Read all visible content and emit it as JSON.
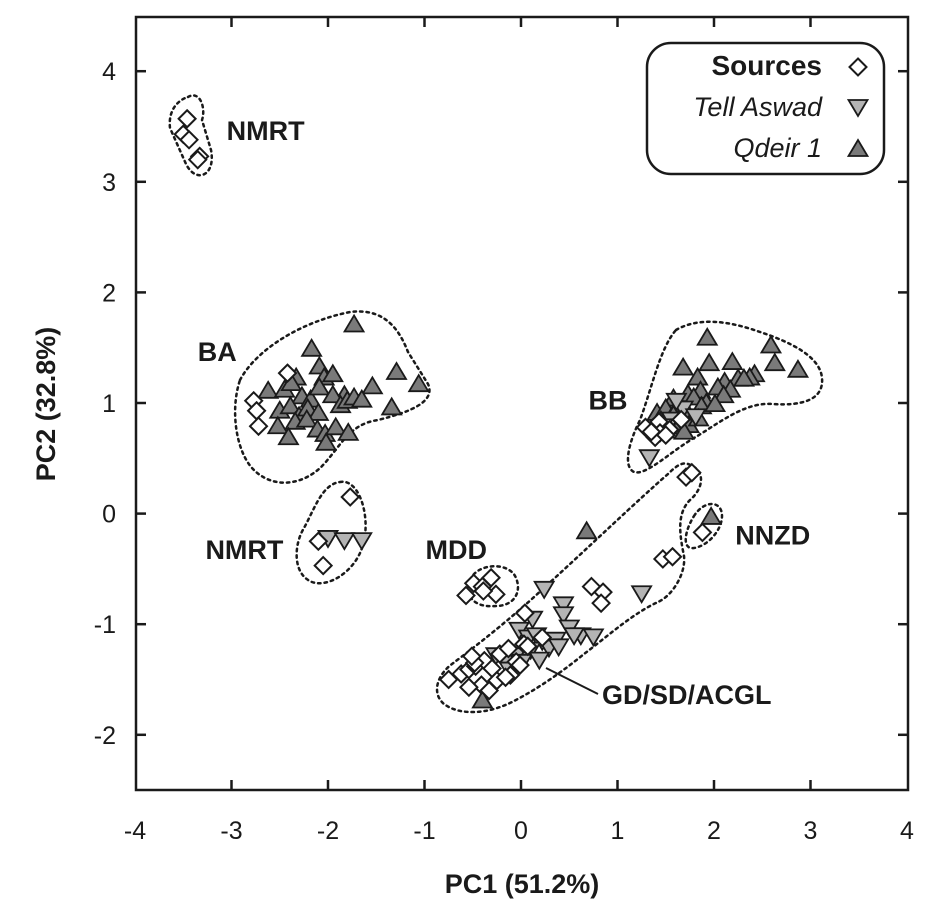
{
  "chart_data": {
    "type": "scatter",
    "xlabel": "PC1 (51.2%)",
    "ylabel": "PC2 (32.8%)",
    "xlim": [
      -4,
      4
    ],
    "ylim": [
      -2.5,
      4.4
    ],
    "x_ticks": [
      -4,
      -3,
      -2,
      -1,
      0,
      1,
      2,
      3,
      4
    ],
    "y_ticks": [
      -2,
      -1,
      0,
      1,
      2,
      3,
      4
    ],
    "x_tick_labels": [
      "-4",
      "-3",
      "-2",
      "-1",
      "0",
      "1",
      "2",
      "3",
      "4"
    ],
    "y_tick_labels": [
      "-2",
      "-1",
      "0",
      "1",
      "2",
      "3",
      "4"
    ],
    "legend": {
      "position": "top-right",
      "title": "Sources",
      "entries": [
        "Tell Aswad",
        "Qdeir 1"
      ]
    },
    "colors": {
      "sources_fill": "#ffffff",
      "tell_aswad_fill": "#b4b4b4",
      "qdeir_fill": "#7a7a7a",
      "stroke": "#1a1a1a"
    },
    "group_labels": [
      {
        "text": "NMRT",
        "x": -3.05,
        "y": 3.47
      },
      {
        "text": "BA",
        "x": -3.35,
        "y": 1.47
      },
      {
        "text": "NMRT",
        "x": -3.27,
        "y": -0.32
      },
      {
        "text": "BB",
        "x": 0.7,
        "y": 1.03
      },
      {
        "text": "MDD",
        "x": -0.99,
        "y": -0.32
      },
      {
        "text": "NNZD",
        "x": 2.22,
        "y": -0.19
      },
      {
        "text": "GD/SD/ACGL",
        "x": 0.84,
        "y": -1.63
      }
    ],
    "series": [
      {
        "name": "Sources",
        "marker": "diamond",
        "x": [
          -3.46,
          -3.5,
          -3.44,
          -3.33,
          -3.35,
          -2.77,
          -2.74,
          -2.72,
          -2.42,
          -1.77,
          -2.1,
          -2.05,
          -0.49,
          -0.4,
          -0.31,
          -0.26,
          -0.39,
          -0.57,
          0.73,
          0.85,
          0.83,
          1.47,
          1.57,
          1.71,
          1.77,
          1.88,
          1.29,
          1.43,
          1.54,
          1.66,
          1.44,
          1.39,
          1.5,
          1.35,
          -0.75,
          -0.62,
          -0.54,
          -0.47,
          -0.38,
          -0.3,
          -0.22,
          -0.13,
          -0.05,
          0.03,
          -0.41,
          -0.33,
          -0.25,
          -0.11,
          -0.54,
          -0.48,
          -0.16,
          0.07,
          0.22,
          0.04,
          -0.51,
          -0.01
        ],
        "y": [
          3.57,
          3.43,
          3.38,
          3.23,
          3.2,
          1.02,
          0.93,
          0.79,
          1.27,
          0.15,
          -0.25,
          -0.47,
          -0.63,
          -0.66,
          -0.58,
          -0.73,
          -0.7,
          -0.74,
          -0.66,
          -0.71,
          -0.81,
          -0.41,
          -0.39,
          0.33,
          0.37,
          -0.17,
          0.78,
          0.83,
          0.76,
          0.85,
          0.73,
          0.69,
          0.71,
          0.74,
          -1.5,
          -1.45,
          -1.41,
          -1.38,
          -1.33,
          -1.4,
          -1.27,
          -1.22,
          -1.34,
          -1.18,
          -1.55,
          -1.6,
          -1.51,
          -1.46,
          -1.57,
          -1.35,
          -1.48,
          -1.2,
          -1.12,
          -0.9,
          -1.29,
          -1.37
        ]
      },
      {
        "name": "Tell Aswad",
        "marker": "triangle-down",
        "x": [
          -2.0,
          -1.83,
          -1.65,
          1.33,
          0.24,
          0.44,
          1.25,
          0.12,
          0.22,
          0.44,
          0.5,
          0.62,
          0.75,
          -0.02,
          0.08,
          0.16,
          0.27,
          0.36,
          0.55,
          -0.26,
          -0.16,
          -0.05,
          0.1,
          0.29,
          0.39,
          -0.12,
          0.01,
          0.19,
          1.56,
          1.68,
          1.81,
          1.47,
          1.61
        ],
        "y": [
          -0.22,
          -0.24,
          -0.24,
          0.51,
          -0.68,
          -0.82,
          -0.72,
          -0.95,
          -1.15,
          -0.91,
          -1.03,
          -1.1,
          -1.11,
          -1.05,
          -1.12,
          -1.1,
          -1.16,
          -1.14,
          -1.1,
          -1.28,
          -1.34,
          -1.28,
          -1.23,
          -1.21,
          -1.2,
          -1.41,
          -1.34,
          -1.32,
          0.85,
          0.95,
          0.88,
          0.79,
          1.02
        ]
      },
      {
        "name": "Qdeir 1",
        "marker": "triangle-up",
        "x": [
          -1.73,
          -2.17,
          -2.09,
          -2.33,
          -2.04,
          -1.95,
          -1.83,
          -1.54,
          -1.29,
          -1.06,
          -2.62,
          -2.45,
          -2.38,
          -2.27,
          -2.18,
          -2.09,
          -1.95,
          -1.87,
          -1.8,
          -1.73,
          -1.65,
          -1.34,
          -2.5,
          -2.39,
          -2.3,
          -2.21,
          -2.1,
          -2.34,
          -2.22,
          -2.11,
          -2.03,
          -1.92,
          -1.79,
          -2.52,
          -2.41,
          -2.02,
          1.93,
          2.19,
          1.95,
          2.42,
          2.63,
          2.59,
          2.87,
          1.68,
          1.83,
          2.11,
          2.25,
          2.37,
          1.41,
          1.58,
          1.73,
          1.86,
          2.04,
          2.17,
          2.31,
          1.5,
          1.64,
          1.79,
          1.92,
          2.1,
          1.45,
          1.58,
          1.72,
          1.87,
          2.01,
          1.61,
          1.74,
          1.84,
          1.54,
          1.69,
          0.68,
          1.97,
          -0.4
        ],
        "y": [
          1.71,
          1.49,
          1.33,
          1.23,
          1.23,
          1.26,
          1.07,
          1.15,
          1.28,
          1.17,
          1.11,
          1.12,
          1.18,
          1.06,
          1.03,
          1.14,
          1.07,
          0.98,
          1.02,
          1.05,
          1.03,
          0.96,
          0.93,
          0.97,
          0.88,
          0.95,
          0.91,
          0.83,
          0.85,
          0.76,
          0.72,
          0.78,
          0.73,
          0.79,
          0.69,
          0.64,
          1.59,
          1.37,
          1.36,
          1.26,
          1.36,
          1.52,
          1.3,
          1.32,
          1.23,
          1.19,
          1.22,
          1.23,
          0.91,
          1.04,
          1.08,
          1.11,
          1.14,
          1.12,
          1.22,
          0.95,
          0.99,
          1.05,
          1.0,
          1.07,
          0.84,
          0.89,
          0.92,
          0.97,
          0.99,
          0.75,
          0.8,
          0.86,
          0.79,
          0.74,
          -0.16,
          -0.03,
          -1.69
        ]
      }
    ]
  }
}
